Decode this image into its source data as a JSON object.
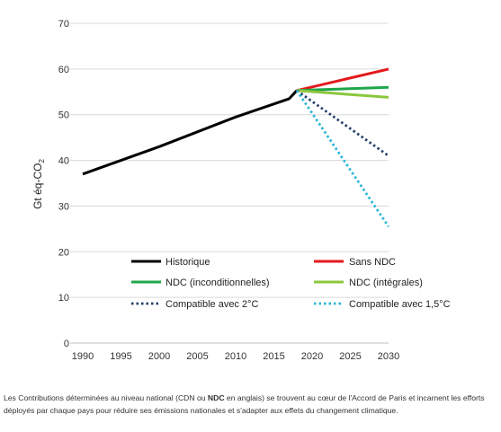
{
  "chart_data": {
    "type": "line",
    "title": "",
    "xlabel": "",
    "ylabel": "Gt éq-CO",
    "ylabel_subscript": "2",
    "xlim": [
      1990,
      2030
    ],
    "ylim": [
      0,
      70
    ],
    "x_ticks": [
      1990,
      1995,
      2000,
      2005,
      2010,
      2015,
      2020,
      2025,
      2030
    ],
    "y_ticks": [
      0,
      10,
      20,
      30,
      40,
      50,
      60,
      70
    ],
    "grid": "horizontal",
    "legend_position": "inside-bottom",
    "series": [
      {
        "name": "Historique",
        "color": "#000000",
        "style": "solid",
        "x": [
          1990,
          2000,
          2010,
          2017,
          2018
        ],
        "y": [
          37,
          43,
          49.5,
          53.5,
          55.3
        ]
      },
      {
        "name": "Sans NDC",
        "color": "#e3191c",
        "style": "solid",
        "x": [
          2018,
          2030
        ],
        "y": [
          55.3,
          60
        ]
      },
      {
        "name": "NDC (inconditionnelles)",
        "color": "#1fa64a",
        "style": "solid",
        "x": [
          2018,
          2030
        ],
        "y": [
          55.3,
          56
        ]
      },
      {
        "name": "NDC (intégrales)",
        "color": "#8cc63e",
        "style": "solid",
        "x": [
          2018,
          2030
        ],
        "y": [
          55.3,
          53.8
        ]
      },
      {
        "name": "Compatible avec 2°C",
        "color": "#27406b",
        "style": "dotted",
        "x": [
          2018,
          2030
        ],
        "y": [
          55.3,
          41
        ]
      },
      {
        "name": "Compatible avec 1,5°C",
        "color": "#29b6d6",
        "style": "dotted",
        "x": [
          2018,
          2030
        ],
        "y": [
          55.3,
          25.5
        ]
      }
    ]
  },
  "caption": {
    "part1": "Les Contributions déterminées au niveau national (CDN ou ",
    "bold": "NDC",
    "part2": " en anglais) se trouvent au cœur de l'Accord de Paris et incarnent les efforts déployés par chaque pays pour réduire ses émissions nationales et s'adapter aux effets du changement climatique."
  }
}
